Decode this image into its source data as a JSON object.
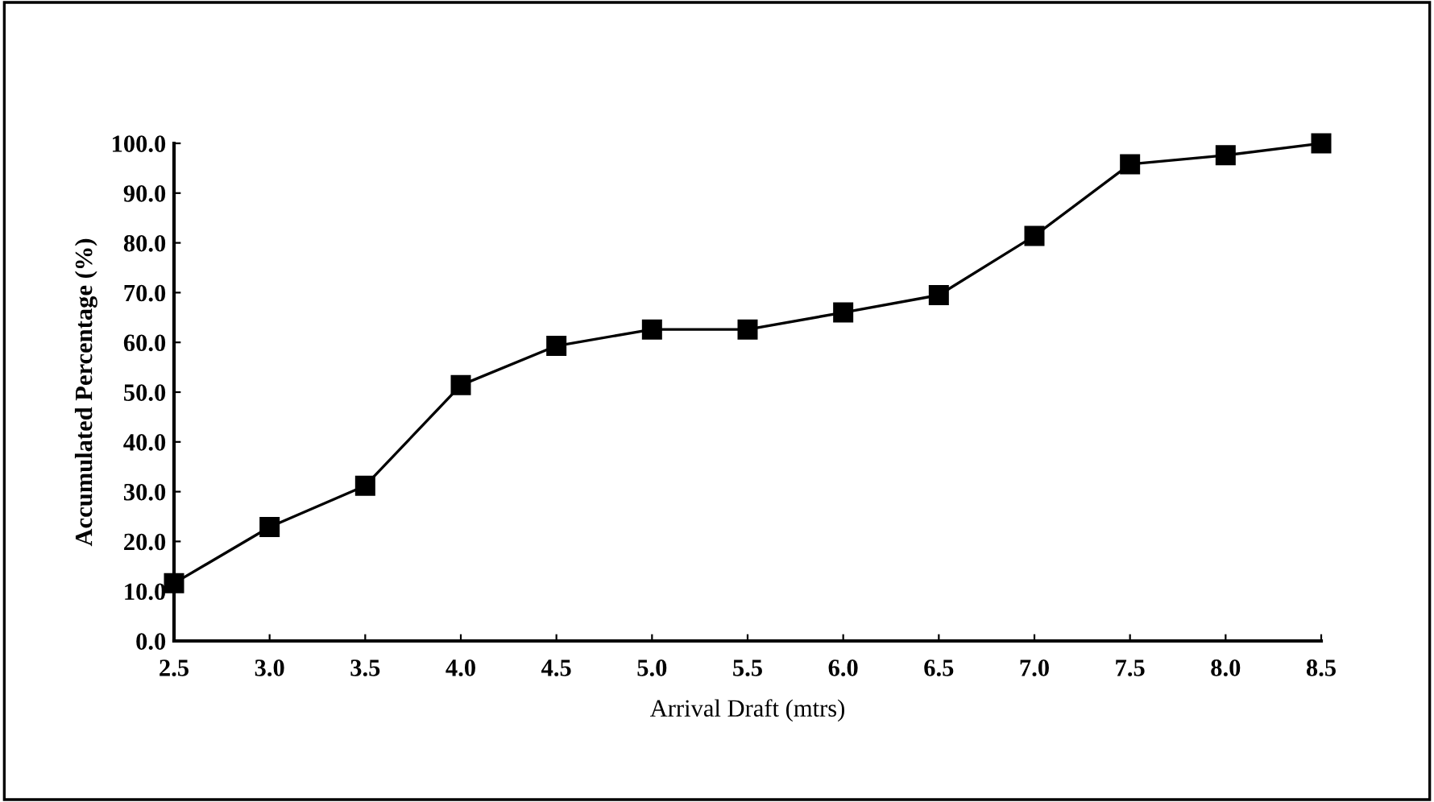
{
  "chart_data": {
    "type": "line",
    "xlabel": "Arrival Draft (mtrs)",
    "ylabel": "Accumulated Percentage (%)",
    "x": [
      2.5,
      3.0,
      3.5,
      4.0,
      4.5,
      5.0,
      5.5,
      6.0,
      6.5,
      7.0,
      7.5,
      8.0,
      8.5
    ],
    "series": [
      {
        "color": "#000000",
        "values": [
          11.6,
          22.9,
          31.2,
          51.4,
          59.3,
          62.6,
          62.6,
          66.0,
          69.5,
          81.4,
          95.8,
          97.6,
          100.0
        ]
      }
    ],
    "xlim": [
      2.5,
      8.5
    ],
    "xticks": [
      {
        "value": 2.5,
        "label": "2.5"
      },
      {
        "value": 3.0,
        "label": "3.0"
      },
      {
        "value": 3.5,
        "label": "3.5"
      },
      {
        "value": 4.0,
        "label": "4.0"
      },
      {
        "value": 4.5,
        "label": "4.5"
      },
      {
        "value": 5.0,
        "label": "5.0"
      },
      {
        "value": 5.5,
        "label": "5.5"
      },
      {
        "value": 6.0,
        "label": "6.0"
      },
      {
        "value": 6.5,
        "label": "6.5"
      },
      {
        "value": 7.0,
        "label": "7.0"
      },
      {
        "value": 7.5,
        "label": "7.5"
      },
      {
        "value": 8.0,
        "label": "8.0"
      },
      {
        "value": 8.5,
        "label": "8.5"
      }
    ],
    "ylim": [
      0,
      100
    ],
    "yticks": [
      {
        "value": 0,
        "label": "0.0"
      },
      {
        "value": 10,
        "label": "10.0"
      },
      {
        "value": 20,
        "label": "20.0"
      },
      {
        "value": 30,
        "label": "30.0"
      },
      {
        "value": 40,
        "label": "40.0"
      },
      {
        "value": 50,
        "label": "50.0"
      },
      {
        "value": 60,
        "label": "60.0"
      },
      {
        "value": 70,
        "label": "70.0"
      },
      {
        "value": 80,
        "label": "80.0"
      },
      {
        "value": 90,
        "label": "90.0"
      },
      {
        "value": 100,
        "label": "100.0"
      }
    ],
    "grid": false,
    "legend": false,
    "marker": "square",
    "line_style": "solid"
  }
}
